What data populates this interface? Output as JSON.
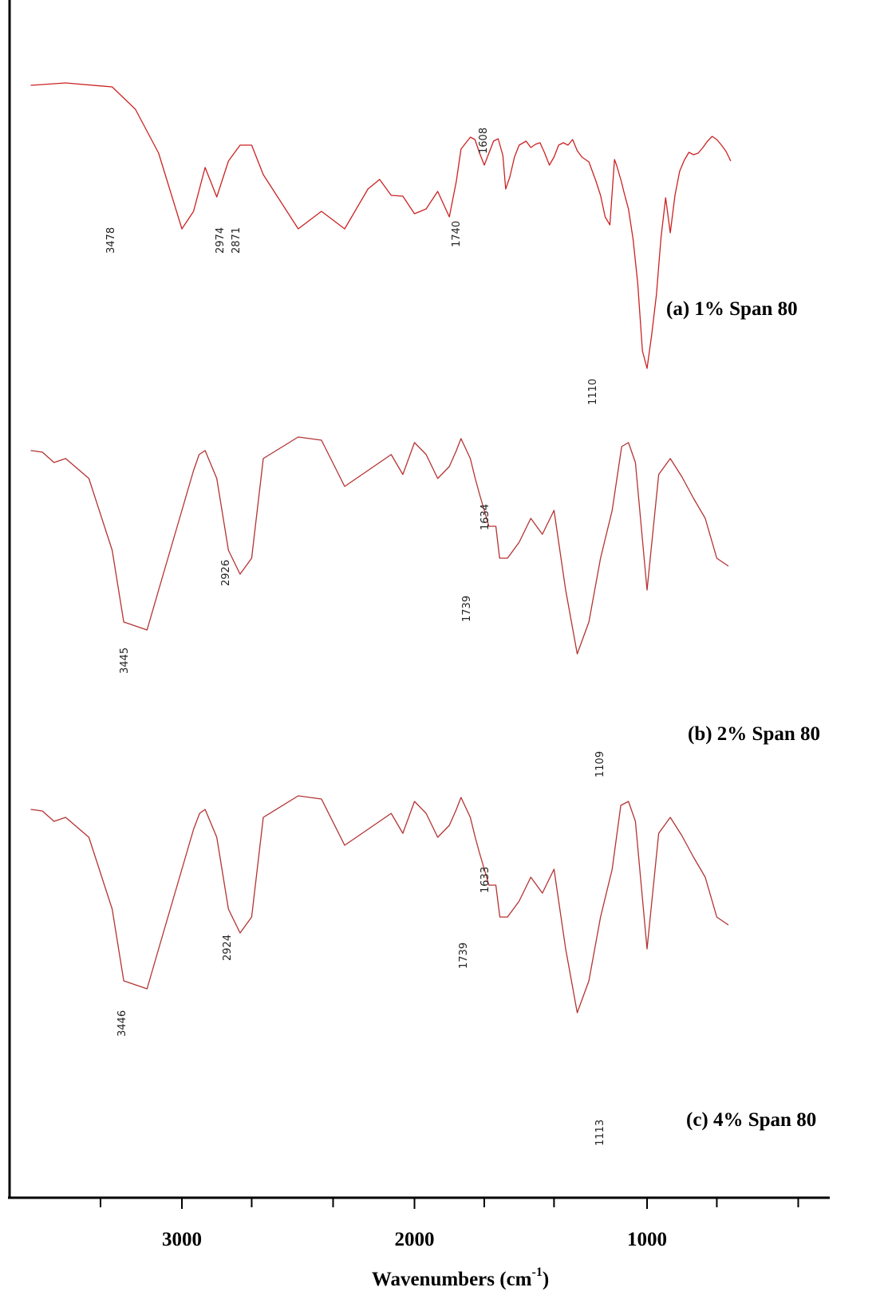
{
  "chart_data": {
    "type": "line",
    "title": "",
    "xlabel": "Wavenumbers",
    "xlabel_unit_base": "(cm",
    "xlabel_unit_exp": "-1",
    "xlabel_unit_close": ")",
    "ylabel": "",
    "xlim": [
      3700,
      350
    ],
    "x_reversed": true,
    "grid": false,
    "xticks": [
      {
        "value": 3000,
        "label": "3000"
      },
      {
        "value": 2000,
        "label": "2000"
      },
      {
        "value": 1000,
        "label": "1000"
      }
    ],
    "minor_ticks": [
      3350,
      2700,
      2350,
      1700,
      1400,
      700,
      350
    ],
    "series": [
      {
        "name": "(a) 1% Span 80",
        "color": "#cc2222",
        "baseline": 97,
        "x": [
          3650,
          3500,
          3300,
          3200,
          3100,
          3000,
          2950,
          2900,
          2850,
          2800,
          2750,
          2700,
          2650,
          2500,
          2400,
          2300,
          2200,
          2150,
          2100,
          2050,
          2000,
          1950,
          1900,
          1850,
          1820,
          1800,
          1760,
          1740,
          1720,
          1700,
          1680,
          1660,
          1640,
          1620,
          1608,
          1590,
          1570,
          1550,
          1520,
          1500,
          1480,
          1460,
          1440,
          1420,
          1400,
          1380,
          1360,
          1340,
          1320,
          1300,
          1280,
          1250,
          1220,
          1200,
          1180,
          1160,
          1140,
          1130,
          1120,
          1110,
          1100,
          1080,
          1060,
          1040,
          1020,
          1000,
          980,
          960,
          940,
          920,
          900,
          880,
          860,
          840,
          820,
          800,
          780,
          760,
          740,
          720,
          700,
          680,
          660,
          640
        ],
        "y": [
          10,
          7,
          12,
          40,
          95,
          190,
          265,
          210,
          150,
          105,
          85,
          85,
          122,
          190,
          265,
          190,
          140,
          128,
          148,
          246,
          268,
          262,
          240,
          175,
          130,
          90,
          75,
          78,
          95,
          110,
          95,
          80,
          77,
          98,
          140,
          125,
          100,
          85,
          80,
          88,
          84,
          82,
          95,
          110,
          100,
          85,
          82,
          85,
          78,
          92,
          100,
          106,
          130,
          148,
          175,
          185,
          200,
          208,
          218,
          228,
          240,
          262,
          300,
          355,
          440,
          462,
          420,
          370,
          298,
          248,
          195,
          148,
          118,
          104,
          94,
          97,
          95,
          88,
          80,
          74,
          78,
          85,
          93,
          105
        ],
        "peak_labels": [
          "3478",
          "2974",
          "2871",
          "1740",
          "1608",
          "1110"
        ]
      },
      {
        "name": "(b) 2% Span 80",
        "color": "#b43333",
        "baseline": 565,
        "x": [
          3650,
          3600,
          3550,
          3500,
          3400,
          3300,
          3250,
          3150,
          3100,
          3050,
          3000,
          2950,
          2926,
          2900,
          2850,
          2800,
          2750,
          2700,
          2650,
          2500,
          2400,
          2300,
          2200,
          2100,
          2050,
          2000,
          1950,
          1900,
          1850,
          1820,
          1800,
          1760,
          1739,
          1720,
          1700,
          1680,
          1650,
          1634,
          1600,
          1550,
          1500,
          1450,
          1400,
          1350,
          1300,
          1250,
          1200,
          1150,
          1109,
          1080,
          1050,
          1000,
          950,
          900,
          850,
          800,
          750,
          700,
          650
        ],
        "y": [
          565,
          567,
          580,
          575,
          600,
          690,
          780,
          790,
          740,
          690,
          640,
          590,
          570,
          565,
          600,
          690,
          720,
          700,
          575,
          548,
          552,
          610,
          590,
          570,
          595,
          555,
          570,
          600,
          585,
          565,
          550,
          575,
          600,
          620,
          640,
          660,
          660,
          700,
          700,
          680,
          650,
          670,
          640,
          740,
          820,
          780,
          700,
          640,
          560,
          555,
          580,
          740,
          595,
          575,
          598,
          625,
          650,
          700,
          710
        ],
        "peak_labels": [
          "3445",
          "2926",
          "1739",
          "1634",
          "1109"
        ]
      },
      {
        "name": "(c) 4% Span 80",
        "color": "#b43333",
        "baseline": 1015,
        "x": [
          3650,
          3600,
          3550,
          3500,
          3400,
          3300,
          3250,
          3150,
          3100,
          3050,
          3000,
          2950,
          2924,
          2900,
          2850,
          2800,
          2750,
          2700,
          2650,
          2500,
          2400,
          2300,
          2200,
          2100,
          2050,
          2000,
          1950,
          1900,
          1850,
          1820,
          1800,
          1760,
          1739,
          1720,
          1700,
          1680,
          1650,
          1633,
          1600,
          1550,
          1500,
          1450,
          1400,
          1350,
          1300,
          1250,
          1200,
          1150,
          1113,
          1080,
          1050,
          1000,
          950,
          900,
          850,
          800,
          750,
          700,
          650
        ],
        "y": [
          1015,
          1017,
          1030,
          1025,
          1050,
          1140,
          1230,
          1240,
          1190,
          1140,
          1090,
          1040,
          1020,
          1015,
          1050,
          1140,
          1170,
          1150,
          1025,
          998,
          1002,
          1060,
          1040,
          1020,
          1045,
          1005,
          1020,
          1050,
          1035,
          1015,
          1000,
          1025,
          1050,
          1070,
          1090,
          1110,
          1110,
          1150,
          1150,
          1130,
          1100,
          1120,
          1090,
          1190,
          1270,
          1230,
          1150,
          1090,
          1010,
          1005,
          1030,
          1190,
          1045,
          1025,
          1048,
          1075,
          1100,
          1150,
          1160
        ],
        "peak_labels": [
          "3446",
          "2924",
          "1739",
          "1633",
          "1113"
        ]
      }
    ]
  }
}
